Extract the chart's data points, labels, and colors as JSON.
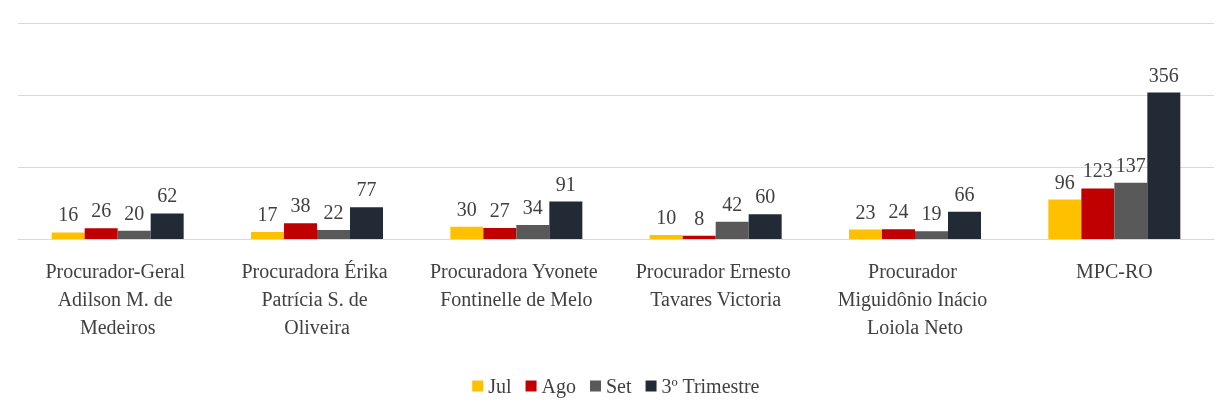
{
  "chart_data": {
    "type": "bar",
    "categories": [
      "Procurador-Geral Adilson M. de Medeiros",
      "Procuradora Érika Patrícia S. de Oliveira",
      "Procuradora Yvonete Fontinelle de Melo",
      "Procurador Ernesto Tavares Victoria",
      "Procurador Miguidônio Inácio Loiola Neto",
      "MPC-RO"
    ],
    "series": [
      {
        "name": "Jul",
        "color": "#ffc000",
        "values": [
          16,
          17,
          30,
          10,
          23,
          96
        ]
      },
      {
        "name": "Ago",
        "color": "#c00000",
        "values": [
          26,
          38,
          27,
          8,
          24,
          123
        ]
      },
      {
        "name": "Set",
        "color": "#595959",
        "values": [
          20,
          22,
          34,
          42,
          19,
          137
        ]
      },
      {
        "name": "3º Trimestre",
        "color": "#222a35",
        "values": [
          62,
          77,
          91,
          60,
          66,
          356
        ]
      }
    ],
    "ylim": [
      0,
      525
    ],
    "yticks": [
      {
        "value": 0,
        "label": null
      },
      {
        "value": 175,
        "label": null
      },
      {
        "value": 350,
        "label": null
      },
      {
        "value": 525,
        "label": null
      }
    ],
    "tick_labels": "x",
    "grid": "y",
    "legend": "bottom",
    "data_labels": true
  }
}
